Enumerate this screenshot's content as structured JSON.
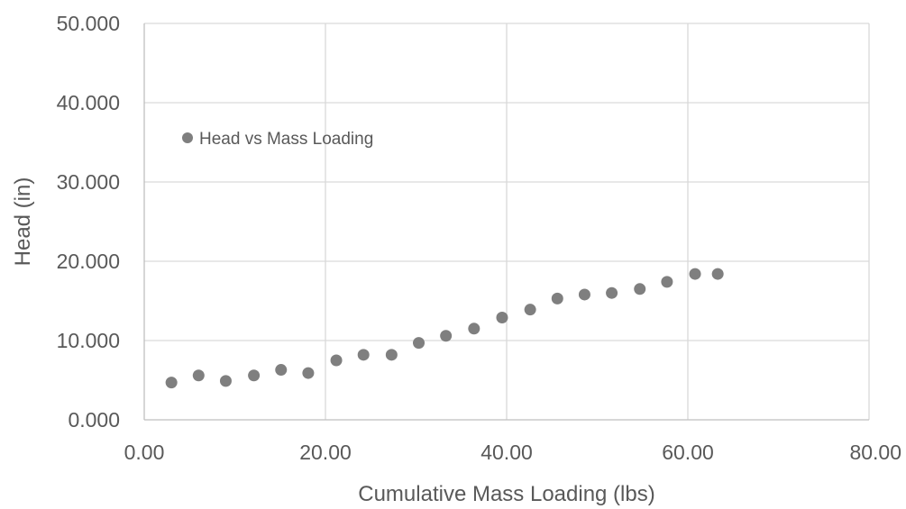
{
  "chart_data": {
    "type": "scatter",
    "title": "",
    "xlabel": "Cumulative Mass Loading (lbs)",
    "ylabel": "Head (in)",
    "xlim": [
      0,
      80
    ],
    "ylim": [
      0,
      50
    ],
    "x_ticks": [
      "0.00",
      "20.00",
      "40.00",
      "60.00",
      "80.00"
    ],
    "y_ticks": [
      "0.000",
      "10.000",
      "20.000",
      "30.000",
      "40.000",
      "50.000"
    ],
    "grid": true,
    "legend_position": "inside-top-left",
    "marker_color": "#7f7f7f",
    "series": [
      {
        "name": "Head vs Mass Loading",
        "x": [
          3.0,
          6.0,
          9.0,
          12.1,
          15.1,
          18.1,
          21.2,
          24.2,
          27.3,
          30.3,
          33.3,
          36.4,
          39.5,
          42.6,
          45.6,
          48.6,
          51.6,
          54.7,
          57.7,
          60.8,
          63.3
        ],
        "y": [
          4.7,
          5.6,
          4.9,
          5.6,
          6.3,
          5.9,
          7.5,
          8.2,
          8.2,
          9.7,
          10.6,
          11.5,
          12.9,
          13.9,
          15.3,
          15.8,
          16.0,
          16.5,
          17.4,
          18.4,
          18.4
        ]
      }
    ]
  }
}
